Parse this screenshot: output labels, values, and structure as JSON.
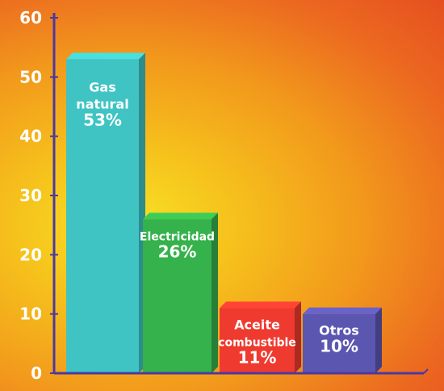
{
  "chart_data": {
    "type": "bar",
    "categories": [
      "Gas natural",
      "Electricidad",
      "Aceite combustible",
      "Otros"
    ],
    "values": [
      53,
      26,
      11,
      10
    ],
    "bar_labels": [
      [
        "Gas",
        "natural",
        "53%"
      ],
      [
        "Electricidad",
        "26%"
      ],
      [
        "Aceite",
        "combustible",
        "11%"
      ],
      [
        "Otros",
        "10%"
      ]
    ],
    "colors": [
      "#3fc3c3",
      "#35b24c",
      "#ef3a2f",
      "#5b56b0"
    ],
    "title": "",
    "xlabel": "",
    "ylabel": "",
    "ylim": [
      0,
      60
    ],
    "yticks": [
      0,
      10,
      20,
      30,
      40,
      50,
      60
    ],
    "grid": false,
    "legend": "none"
  }
}
